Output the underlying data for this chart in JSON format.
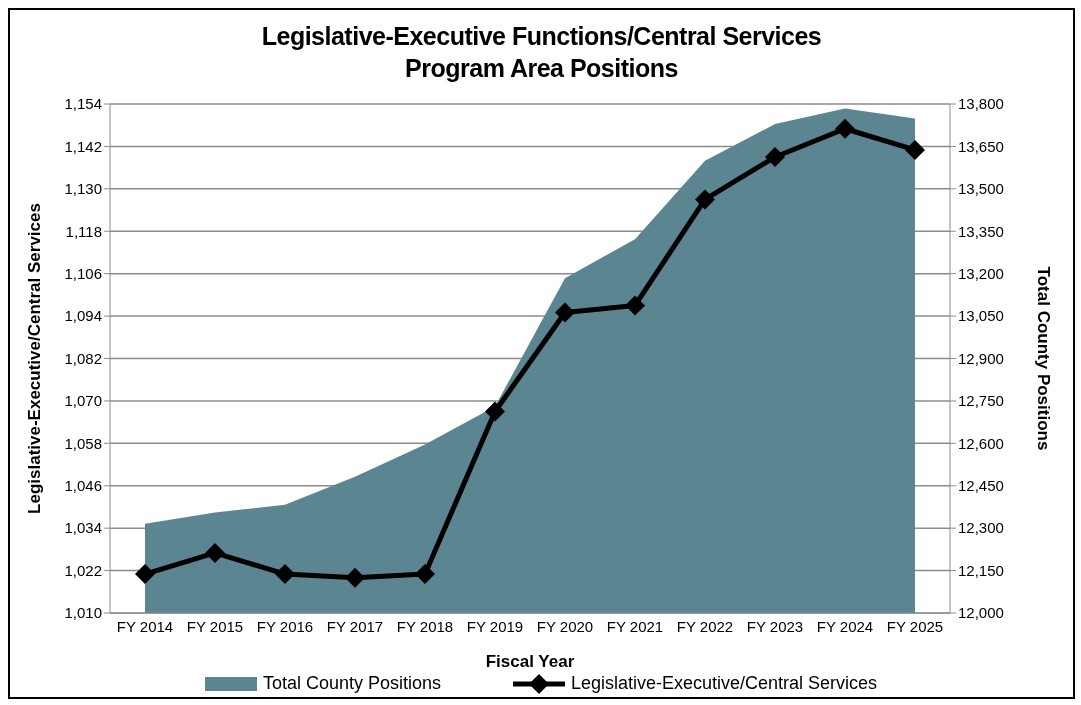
{
  "chart_data": {
    "type": "line",
    "title": "Legislative-Executive Functions/Central Services\nProgram Area Positions",
    "xlabel": "Fiscal Year",
    "ylabel": "Legislative-Executive/Central  Services",
    "y2label": "Total County Positions",
    "categories": [
      "FY 2014",
      "FY 2015",
      "FY 2016",
      "FY 2017",
      "FY 2018",
      "FY 2019",
      "FY 2020",
      "FY 2021",
      "FY 2022",
      "FY 2023",
      "FY 2024",
      "FY 2025"
    ],
    "series": [
      {
        "name": "Total County Positions",
        "type": "area",
        "axis": "y2",
        "color": "#5a8591",
        "values": [
          12316,
          12355,
          12383,
          12482,
          12596,
          12730,
          13184,
          13322,
          13599,
          13729,
          13784,
          13749
        ]
      },
      {
        "name": "Legislative-Executive/Central Services",
        "color": "#000000",
        "marker": "diamond",
        "values": [
          1021,
          1027,
          1021,
          1020,
          1021,
          1067,
          1095,
          1097,
          1127,
          1139,
          1147,
          1141
        ]
      }
    ],
    "ylim": [
      1010,
      1154
    ],
    "yticks": [
      {
        "value": 1010,
        "label": "1,010"
      },
      {
        "value": 1022,
        "label": "1,022"
      },
      {
        "value": 1034,
        "label": "1,034"
      },
      {
        "value": 1046,
        "label": "1,046"
      },
      {
        "value": 1058,
        "label": "1,058"
      },
      {
        "value": 1070,
        "label": "1,070"
      },
      {
        "value": 1082,
        "label": "1,082"
      },
      {
        "value": 1094,
        "label": "1,094"
      },
      {
        "value": 1106,
        "label": "1,106"
      },
      {
        "value": 1118,
        "label": "1,118"
      },
      {
        "value": 1130,
        "label": "1,130"
      },
      {
        "value": 1142,
        "label": "1,142"
      },
      {
        "value": 1154,
        "label": "1,154"
      }
    ],
    "y2lim": [
      12000,
      13800
    ],
    "y2ticks": [
      {
        "value": 12000,
        "label": "12,000"
      },
      {
        "value": 12150,
        "label": "12,150"
      },
      {
        "value": 12300,
        "label": "12,300"
      },
      {
        "value": 12450,
        "label": "12,450"
      },
      {
        "value": 12600,
        "label": "12,600"
      },
      {
        "value": 12750,
        "label": "12,750"
      },
      {
        "value": 12900,
        "label": "12,900"
      },
      {
        "value": 13050,
        "label": "13,050"
      },
      {
        "value": 13200,
        "label": "13,200"
      },
      {
        "value": 13350,
        "label": "13,350"
      },
      {
        "value": 13500,
        "label": "13,500"
      },
      {
        "value": 13650,
        "label": "13,650"
      },
      {
        "value": 13800,
        "label": "13,800"
      }
    ],
    "grid": "y",
    "legend": "bottom",
    "line_style": "solid"
  }
}
